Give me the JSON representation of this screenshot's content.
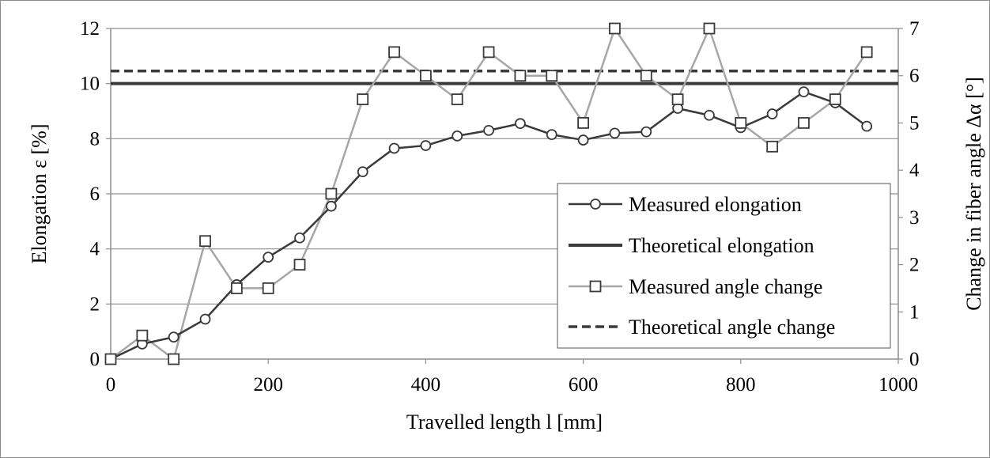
{
  "chart_data": {
    "type": "line",
    "xlabel": "Travelled length l [mm]",
    "ylabel_left": "Elongation ε [%]",
    "ylabel_right": "Change in fiber angle Δα [°]",
    "xlim": [
      0,
      1000
    ],
    "ylim_left": [
      0,
      12
    ],
    "ylim_right": [
      0,
      7
    ],
    "x_ticks": [
      "0",
      "200",
      "400",
      "600",
      "800",
      "1000"
    ],
    "y_left_ticks": [
      "0",
      "2",
      "4",
      "6",
      "8",
      "10",
      "12"
    ],
    "y_right_ticks": [
      "0",
      "1",
      "2",
      "3",
      "4",
      "5",
      "6",
      "7"
    ],
    "grid": "horizontal",
    "legend_position": "bottom-right",
    "series": [
      {
        "name": "Measured elongation",
        "axis": "left",
        "color": "#3a3a3a",
        "marker": "circle",
        "x": [
          0,
          40,
          80,
          120,
          160,
          200,
          240,
          280,
          320,
          360,
          400,
          440,
          480,
          520,
          560,
          600,
          640,
          680,
          720,
          760,
          800,
          840,
          880,
          920,
          960
        ],
        "y": [
          0,
          0.55,
          0.8,
          1.45,
          2.7,
          3.7,
          4.4,
          5.55,
          6.8,
          7.65,
          7.75,
          8.1,
          8.3,
          8.55,
          8.15,
          7.95,
          8.2,
          8.25,
          9.1,
          8.85,
          8.4,
          8.9,
          9.7,
          9.3,
          8.45
        ]
      },
      {
        "name": "Theoretical elongation",
        "axis": "left",
        "color": "#3a3a3a",
        "style": "solid-thick",
        "x": [
          0,
          1000
        ],
        "y": [
          10,
          10
        ]
      },
      {
        "name": "Measured angle change",
        "axis": "right",
        "color": "#a6a6a6",
        "marker": "square",
        "x": [
          0,
          40,
          80,
          120,
          160,
          200,
          240,
          280,
          320,
          360,
          400,
          440,
          480,
          520,
          560,
          600,
          640,
          680,
          720,
          760,
          800,
          840,
          880,
          920,
          960
        ],
        "y": [
          0,
          0.5,
          0,
          2.5,
          1.5,
          1.5,
          2,
          3.5,
          5.5,
          6.5,
          6,
          5.5,
          6.5,
          6,
          6,
          5,
          7,
          6,
          5.5,
          7,
          5,
          4.5,
          5,
          5.5,
          6.5
        ]
      },
      {
        "name": "Theoretical angle change",
        "axis": "right",
        "color": "#3a3a3a",
        "style": "dashed",
        "x": [
          0,
          1000
        ],
        "y": [
          6.1,
          6.1
        ]
      }
    ]
  }
}
